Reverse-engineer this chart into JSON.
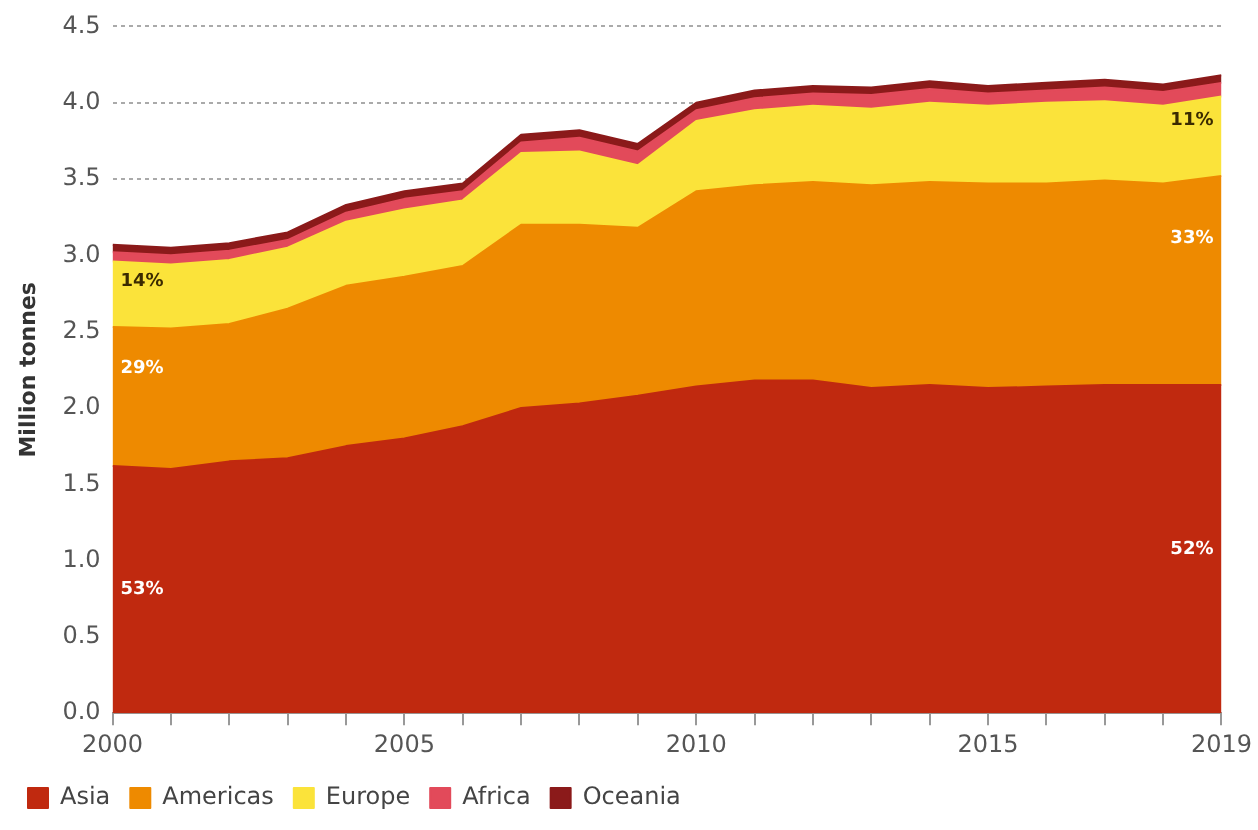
{
  "chart_data": {
    "type": "area",
    "stacked": true,
    "ylabel": "Million tonnes",
    "x": [
      2000,
      2001,
      2002,
      2003,
      2004,
      2005,
      2006,
      2007,
      2008,
      2009,
      2010,
      2011,
      2012,
      2013,
      2014,
      2015,
      2016,
      2017,
      2018,
      2019
    ],
    "series": [
      {
        "name": "Asia",
        "color": "#c0290f",
        "values": [
          1.62,
          1.6,
          1.65,
          1.67,
          1.75,
          1.8,
          1.88,
          2.0,
          2.03,
          2.08,
          2.14,
          2.18,
          2.18,
          2.13,
          2.15,
          2.13,
          2.14,
          2.15,
          2.15,
          2.15
        ]
      },
      {
        "name": "Americas",
        "color": "#ee8a00",
        "values": [
          0.91,
          0.92,
          0.9,
          0.98,
          1.05,
          1.06,
          1.05,
          1.2,
          1.17,
          1.1,
          1.28,
          1.28,
          1.3,
          1.33,
          1.33,
          1.34,
          1.33,
          1.34,
          1.32,
          1.37
        ]
      },
      {
        "name": "Europe",
        "color": "#fbe33a",
        "values": [
          0.43,
          0.42,
          0.42,
          0.4,
          0.42,
          0.44,
          0.43,
          0.47,
          0.48,
          0.41,
          0.46,
          0.49,
          0.5,
          0.5,
          0.52,
          0.51,
          0.53,
          0.52,
          0.51,
          0.52
        ]
      },
      {
        "name": "Africa",
        "color": "#e24a5a",
        "values": [
          0.06,
          0.06,
          0.06,
          0.05,
          0.06,
          0.07,
          0.06,
          0.07,
          0.09,
          0.09,
          0.07,
          0.08,
          0.08,
          0.09,
          0.09,
          0.08,
          0.08,
          0.09,
          0.09,
          0.09
        ]
      },
      {
        "name": "Oceania",
        "color": "#8b1a1a",
        "values": [
          0.05,
          0.05,
          0.05,
          0.05,
          0.05,
          0.05,
          0.05,
          0.05,
          0.05,
          0.05,
          0.05,
          0.05,
          0.05,
          0.05,
          0.05,
          0.05,
          0.05,
          0.05,
          0.05,
          0.05
        ]
      }
    ],
    "xlim": [
      2000,
      2019
    ],
    "xticks": [
      2000,
      {
        "value": 2001,
        "label": null
      },
      {
        "value": 2002,
        "label": null
      },
      {
        "value": 2003,
        "label": null
      },
      {
        "value": 2004,
        "label": null
      },
      2005,
      {
        "value": 2006,
        "label": null
      },
      {
        "value": 2007,
        "label": null
      },
      {
        "value": 2008,
        "label": null
      },
      {
        "value": 2009,
        "label": null
      },
      2010,
      {
        "value": 2011,
        "label": null
      },
      {
        "value": 2012,
        "label": null
      },
      {
        "value": 2013,
        "label": null
      },
      {
        "value": 2014,
        "label": null
      },
      2015,
      {
        "value": 2016,
        "label": null
      },
      {
        "value": 2017,
        "label": null
      },
      {
        "value": 2018,
        "label": null
      },
      2019
    ],
    "ylim": [
      0,
      4.5
    ],
    "yticks": [
      {
        "value": 0,
        "label": "0.0"
      },
      0.5,
      {
        "value": 1,
        "label": "1.0"
      },
      1.5,
      {
        "value": 2,
        "label": "2.0"
      },
      2.5,
      {
        "value": 3,
        "label": "3.0"
      },
      3.5,
      {
        "value": 4,
        "label": "4.0"
      },
      4.5
    ],
    "grid": "y",
    "legend": "bottom",
    "annotations": [
      "53%",
      "29%",
      "14%",
      "52%",
      "33%",
      "11%"
    ]
  }
}
